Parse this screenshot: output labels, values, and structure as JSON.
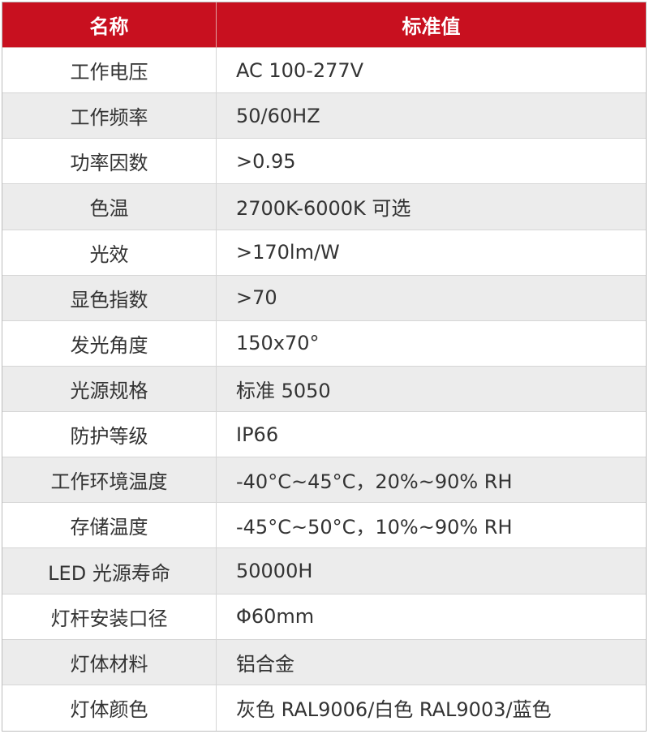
{
  "table": {
    "header": [
      "名称",
      "标准值"
    ],
    "rows": [
      [
        "工作电压",
        "AC 100-277V"
      ],
      [
        "工作频率",
        "50/60HZ"
      ],
      [
        "功率因数",
        ">0.95"
      ],
      [
        "色温",
        "2700K-6000K 可选"
      ],
      [
        "光效",
        ">170lm/W"
      ],
      [
        "显色指数",
        ">70"
      ],
      [
        "发光角度",
        "150x70°"
      ],
      [
        "光源规格",
        "标准 5050"
      ],
      [
        "防护等级",
        "IP66"
      ],
      [
        "工作环境温度",
        "-40°C~45°C，20%~90% RH"
      ],
      [
        "存储温度",
        "-45°C~50°C，10%~90% RH"
      ],
      [
        "LED 光源寿命",
        "50000H"
      ],
      [
        "灯杆安装口径",
        "Φ60mm"
      ],
      [
        "灯体材料",
        "铝合金"
      ],
      [
        "灯体颜色",
        "灰色 RAL9006/白色 RAL9003/蓝色"
      ]
    ]
  }
}
